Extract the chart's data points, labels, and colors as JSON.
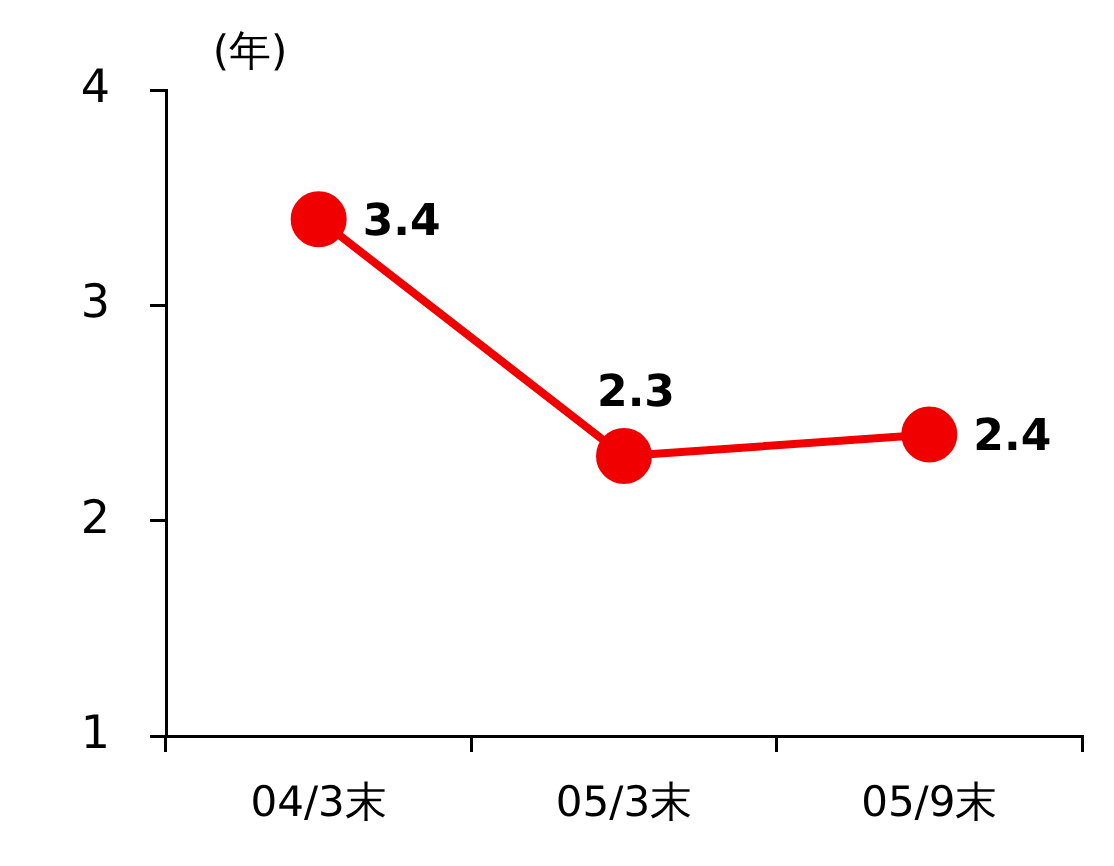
{
  "chart_data": {
    "type": "line",
    "ylabel": "(年)",
    "categories": [
      "04/3末",
      "05/3末",
      "05/9末"
    ],
    "series": [
      {
        "color": "#f00000",
        "values": [
          3.4,
          2.3,
          2.4
        ]
      }
    ],
    "ylim": [
      1,
      4
    ],
    "yticks": [
      1,
      2,
      3,
      4
    ],
    "grid": false,
    "legend": false,
    "marker": "circle",
    "line_style": "solid",
    "data_labels": true
  }
}
